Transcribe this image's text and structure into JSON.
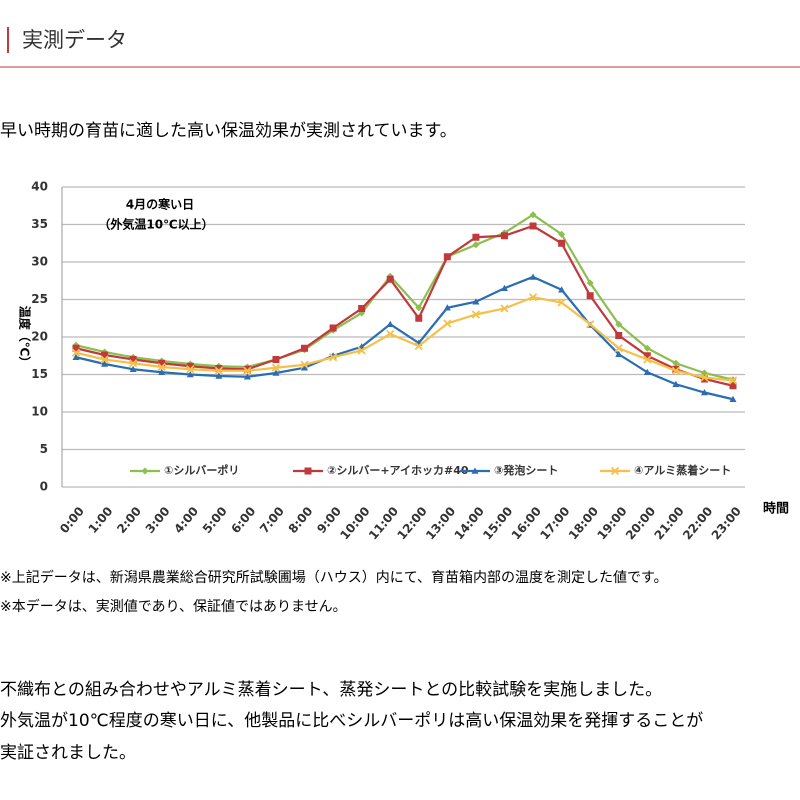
{
  "header": {
    "title": "実測データ"
  },
  "intro": "早い時期の育苗に適した高い保温効果が実測されています。",
  "chart_data": {
    "type": "line",
    "annotation": [
      "4月の寒い日",
      "（外気温10℃以上）"
    ],
    "y_label": "温度（℃）",
    "x_label": "時間",
    "categories": [
      "0:00",
      "1:00",
      "2:00",
      "3:00",
      "4:00",
      "5:00",
      "6:00",
      "7:00",
      "8:00",
      "9:00",
      "10:00",
      "11:00",
      "12:00",
      "13:00",
      "14:00",
      "15:00",
      "16:00",
      "17:00",
      "18:00",
      "19:00",
      "20:00",
      "21:00",
      "22:00",
      "23:00"
    ],
    "ylim": [
      0,
      40
    ],
    "yticks": [
      0,
      5,
      10,
      15,
      20,
      25,
      30,
      35,
      40
    ],
    "grid": true,
    "legend": "bottom",
    "series": [
      {
        "name": "①シルバーポリ",
        "color": "#8cbf4f",
        "marker": "diamond",
        "values": [
          18.9,
          18.0,
          17.3,
          16.8,
          16.4,
          16.1,
          16.0,
          17.0,
          18.3,
          20.9,
          23.2,
          28.1,
          23.9,
          30.7,
          32.3,
          33.9,
          36.3,
          33.7,
          27.2,
          21.7,
          18.5,
          16.5,
          15.2,
          14.3
        ]
      },
      {
        "name": "②シルバー+アイホッカ#40",
        "color": "#c0393b",
        "marker": "square",
        "values": [
          18.5,
          17.6,
          17.0,
          16.5,
          16.1,
          15.8,
          15.7,
          17.0,
          18.5,
          21.2,
          23.8,
          27.7,
          22.5,
          30.7,
          33.3,
          33.5,
          34.8,
          32.5,
          25.5,
          20.2,
          17.5,
          15.7,
          14.4,
          13.5
        ]
      },
      {
        "name": "③発泡シート",
        "color": "#2a6db5",
        "marker": "triangle",
        "values": [
          17.3,
          16.4,
          15.7,
          15.3,
          15.0,
          14.8,
          14.7,
          15.2,
          15.9,
          17.5,
          18.7,
          21.7,
          19.2,
          23.9,
          24.7,
          26.5,
          28.0,
          26.3,
          21.6,
          17.7,
          15.3,
          13.7,
          12.6,
          11.7
        ]
      },
      {
        "name": "④アルミ蒸着シート",
        "color": "#f5c04a",
        "marker": "cross",
        "values": [
          17.9,
          17.0,
          16.5,
          16.0,
          15.7,
          15.5,
          15.5,
          15.9,
          16.3,
          17.3,
          18.2,
          20.4,
          18.8,
          21.8,
          23.0,
          23.8,
          25.3,
          24.6,
          21.7,
          18.5,
          17.0,
          15.5,
          14.6,
          14.2
        ]
      }
    ]
  },
  "notes": [
    "※上記データは、新潟県農業総合研究所試験圃場（ハウス）内にて、育苗箱内部の温度を測定した値です。",
    "※本データは、実測値であり、保証値ではありません。"
  ],
  "body": [
    "不織布との組み合わせやアルミ蒸着シート、蒸発シートとの比較試験を実施しました。",
    "外気温が10℃程度の寒い日に、他製品に比べシルバーポリは高い保温効果を発揮することが",
    "実証されました。"
  ]
}
